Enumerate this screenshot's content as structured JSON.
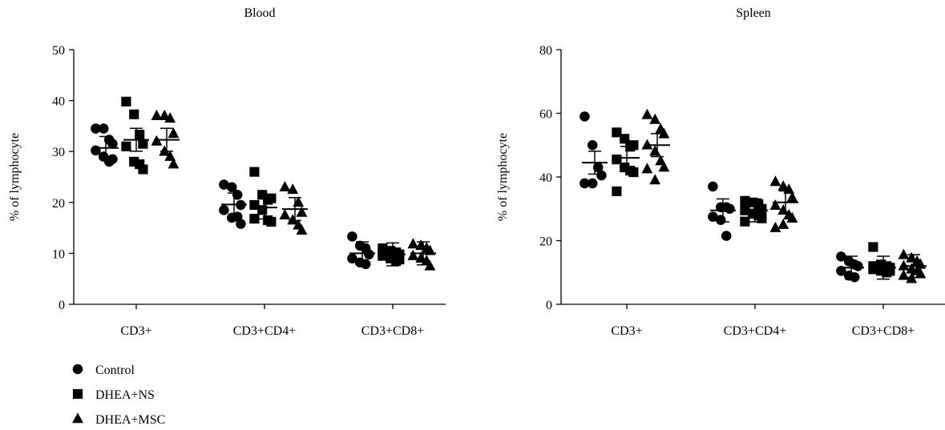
{
  "legend": [
    {
      "label": "Control",
      "marker": "circle"
    },
    {
      "label": "DHEA+NS",
      "marker": "square"
    },
    {
      "label": "DHEA+MSC",
      "marker": "triangle"
    }
  ],
  "chart_data": [
    {
      "type": "scatter",
      "title": "Blood",
      "ylabel": "% of lymphocyte",
      "xlabel": "",
      "categories": [
        "CD3+",
        "CD3+CD4+",
        "CD3+CD8+"
      ],
      "ylim": [
        0,
        50
      ],
      "yticks": [
        0,
        10,
        20,
        30,
        40,
        50
      ],
      "legend_position": "bottom-left",
      "series": [
        {
          "name": "Control",
          "marker": "circle",
          "points": [
            [
              34.5,
              34.5,
              32.3,
              31.5,
              30.2,
              29.0,
              28.0,
              28.5
            ],
            [
              23.5,
              23.0,
              21.5,
              19.5,
              18.5,
              17.0,
              17.2,
              15.8
            ],
            [
              13.3,
              11.5,
              11.0,
              9.8,
              9.0,
              8.2,
              7.9
            ]
          ],
          "means": [
            30.7,
            19.6,
            10.0
          ]
        },
        {
          "name": "DHEA+NS",
          "marker": "square",
          "points": [
            [
              39.8,
              37.3,
              33.3,
              31.5,
              31.0,
              28.0,
              27.5,
              26.5
            ],
            [
              26.0,
              21.5,
              20.5,
              20.8,
              19.5,
              18.5,
              16.5,
              16.2,
              16.8
            ],
            [
              11.0,
              10.5,
              10.2,
              9.8,
              9.5,
              9.0,
              8.5,
              8.8,
              10.0,
              10.3
            ]
          ],
          "means": [
            32.3,
            19.0,
            9.8
          ]
        },
        {
          "name": "DHEA+MSC",
          "marker": "triangle",
          "points": [
            [
              37.0,
              37.0,
              36.5,
              33.5,
              32.0,
              30.0,
              29.0,
              27.5
            ],
            [
              23.0,
              22.5,
              20.0,
              18.0,
              17.5,
              16.5,
              15.5,
              14.5
            ],
            [
              11.8,
              11.5,
              11.0,
              10.5,
              9.5,
              9.0,
              8.5,
              7.5
            ]
          ],
          "means": [
            32.3,
            18.7,
            10.0
          ]
        }
      ]
    },
    {
      "type": "scatter",
      "title": "Spleen",
      "ylabel": "% of lymphocyte",
      "xlabel": "",
      "categories": [
        "CD3+",
        "CD3+CD4+",
        "CD3+CD8+"
      ],
      "ylim": [
        0,
        80
      ],
      "yticks": [
        0,
        20,
        40,
        60,
        80
      ],
      "series": [
        {
          "name": "Control",
          "marker": "circle",
          "points": [
            [
              59.0,
              50.0,
              43.0,
              40.5,
              38.0,
              38.0
            ],
            [
              37.0,
              30.5,
              30.5,
              30.0,
              27.5,
              26.5,
              21.5
            ],
            [
              15.0,
              13.5,
              12.5,
              12.0,
              10.5,
              9.0,
              8.5
            ]
          ],
          "means": [
            44.5,
            29.5,
            11.5
          ]
        },
        {
          "name": "DHEA+NS",
          "marker": "square",
          "points": [
            [
              54.0,
              52.0,
              49.5,
              50.0,
              45.5,
              43.0,
              42.0,
              41.5,
              35.5
            ],
            [
              32.5,
              32.0,
              31.5,
              30.0,
              29.5,
              28.5,
              28.0,
              27.0,
              26.0,
              28.5
            ],
            [
              18.0,
              12.5,
              12.0,
              11.5,
              11.0,
              10.5,
              10.0,
              10.5,
              12.0
            ]
          ],
          "means": [
            46.0,
            29.5,
            11.5
          ]
        },
        {
          "name": "DHEA+MSC",
          "marker": "triangle",
          "points": [
            [
              59.5,
              58.0,
              55.0,
              53.5,
              50.0,
              48.0,
              45.0,
              43.0,
              42.5,
              39.0
            ],
            [
              38.5,
              37.0,
              36.0,
              33.5,
              31.0,
              29.5,
              28.0,
              27.0,
              24.0,
              25.0
            ],
            [
              15.5,
              14.5,
              13.5,
              12.5,
              12.0,
              11.0,
              10.5,
              9.5,
              9.0,
              8.0
            ]
          ],
          "means": [
            50.0,
            32.0,
            12.0
          ]
        }
      ]
    }
  ]
}
